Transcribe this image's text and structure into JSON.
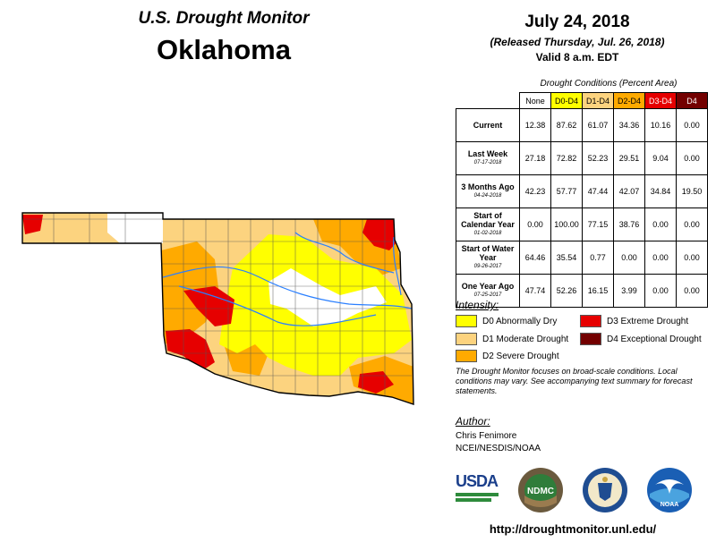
{
  "header": {
    "title": "U.S. Drought Monitor",
    "state": "Oklahoma",
    "date": "July 24, 2018",
    "released": "(Released Thursday, Jul. 26, 2018)",
    "valid": "Valid 8 a.m. EDT"
  },
  "table": {
    "caption": "Drought Conditions (Percent Area)",
    "columns": [
      "None",
      "D0-D4",
      "D1-D4",
      "D2-D4",
      "D3-D4",
      "D4"
    ],
    "column_colors": [
      "#ffffff",
      "#ffff00",
      "#fcd37f",
      "#ffaa00",
      "#e60000",
      "#730000"
    ],
    "rows": [
      {
        "label": "Current",
        "date": "",
        "values": [
          "12.38",
          "87.62",
          "61.07",
          "34.36",
          "10.16",
          "0.00"
        ]
      },
      {
        "label": "Last Week",
        "date": "07-17-2018",
        "values": [
          "27.18",
          "72.82",
          "52.23",
          "29.51",
          "9.04",
          "0.00"
        ]
      },
      {
        "label": "3 Months Ago",
        "date": "04-24-2018",
        "values": [
          "42.23",
          "57.77",
          "47.44",
          "42.07",
          "34.84",
          "19.50"
        ]
      },
      {
        "label": "Start of Calendar Year",
        "date": "01-02-2018",
        "values": [
          "0.00",
          "100.00",
          "77.15",
          "38.76",
          "0.00",
          "0.00"
        ]
      },
      {
        "label": "Start of Water Year",
        "date": "09-26-2017",
        "values": [
          "64.46",
          "35.54",
          "0.77",
          "0.00",
          "0.00",
          "0.00"
        ]
      },
      {
        "label": "One Year Ago",
        "date": "07-25-2017",
        "values": [
          "47.74",
          "52.26",
          "16.15",
          "3.99",
          "0.00",
          "0.00"
        ]
      }
    ]
  },
  "legend": {
    "title": "Intensity:",
    "items": [
      {
        "label": "D0 Abnormally Dry",
        "color": "#ffff00"
      },
      {
        "label": "D1 Moderate Drought",
        "color": "#fcd37f"
      },
      {
        "label": "D2 Severe Drought",
        "color": "#ffaa00"
      },
      {
        "label": "D3 Extreme Drought",
        "color": "#e60000"
      },
      {
        "label": "D4 Exceptional Drought",
        "color": "#730000"
      }
    ]
  },
  "note": "The Drought Monitor focuses on broad-scale conditions. Local conditions may vary. See accompanying text summary for forecast statements.",
  "author": {
    "title": "Author:",
    "name": "Chris Fenimore",
    "org": "NCEI/NESDIS/NOAA"
  },
  "logos": {
    "usda": "USDA",
    "ndmc": "NDMC",
    "noaa": "NOAA"
  },
  "url": "http://droughtmonitor.unl.edu/"
}
